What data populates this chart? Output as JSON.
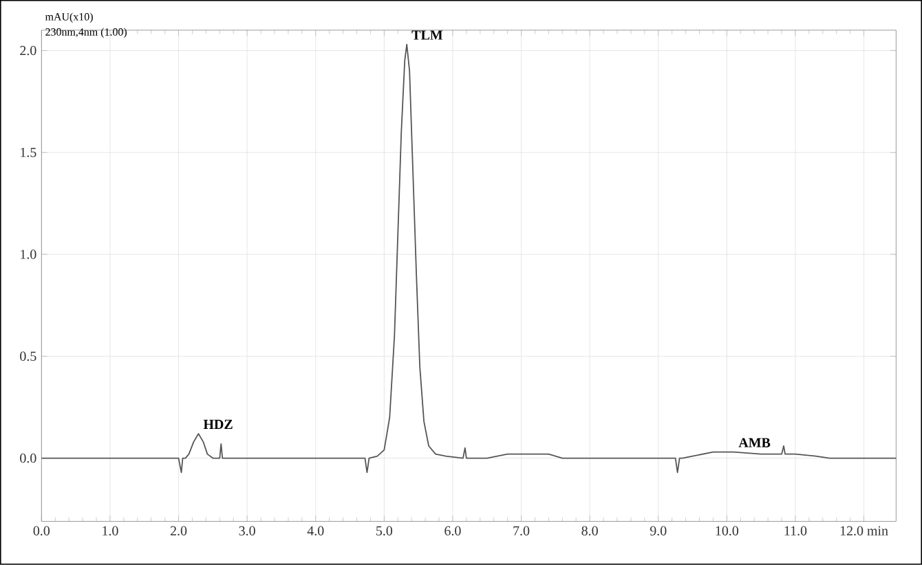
{
  "chart_data": {
    "type": "line",
    "ylabel": "mAU(x10)",
    "annotations": [
      "230nm,4nm (1.00)",
      {
        "text": "HDZ",
        "x": 2.29,
        "y": 0.12
      },
      {
        "text": "TLM",
        "x": 5.33,
        "y": 2.03
      },
      {
        "text": "AMB",
        "x": 10.1,
        "y": 0.03
      }
    ],
    "series": [
      {
        "color": "#555555",
        "x": [
          0.0,
          2.0,
          2.04,
          2.06,
          2.1,
          2.15,
          2.22,
          2.29,
          2.36,
          2.42,
          2.5,
          2.6,
          2.62,
          2.64,
          2.7,
          3.5,
          4.5,
          4.72,
          4.75,
          4.78,
          4.9,
          5.0,
          5.08,
          5.15,
          5.2,
          5.25,
          5.3,
          5.33,
          5.37,
          5.42,
          5.47,
          5.52,
          5.58,
          5.65,
          5.75,
          5.9,
          6.15,
          6.18,
          6.2,
          6.22,
          6.3,
          6.5,
          6.8,
          7.1,
          7.4,
          7.6,
          8.5,
          9.25,
          9.28,
          9.31,
          9.35,
          9.5,
          9.8,
          10.1,
          10.5,
          10.8,
          10.83,
          10.85,
          10.88,
          11.0,
          11.3,
          11.5,
          12.47
        ],
        "values": [
          0.0,
          0.0,
          -0.07,
          0.0,
          0.0,
          0.02,
          0.08,
          0.12,
          0.08,
          0.02,
          0.0,
          0.0,
          0.07,
          0.0,
          0.0,
          0.0,
          0.0,
          0.0,
          -0.07,
          0.0,
          0.01,
          0.04,
          0.2,
          0.6,
          1.1,
          1.6,
          1.95,
          2.03,
          1.9,
          1.4,
          0.9,
          0.45,
          0.18,
          0.06,
          0.02,
          0.01,
          0.0,
          0.05,
          0.0,
          0.0,
          0.0,
          0.0,
          0.02,
          0.02,
          0.02,
          0.0,
          0.0,
          0.0,
          -0.07,
          0.0,
          0.0,
          0.01,
          0.03,
          0.03,
          0.02,
          0.02,
          0.06,
          0.02,
          0.02,
          0.02,
          0.01,
          0.0,
          0.0
        ]
      }
    ],
    "xlim": [
      0.0,
      12.47
    ],
    "ylim": [
      -0.31,
      2.1
    ],
    "xticks": [
      {
        "value": 0,
        "label": "0.0"
      },
      {
        "value": 1,
        "label": "1.0"
      },
      {
        "value": 2,
        "label": "2.0"
      },
      {
        "value": 3,
        "label": "3.0"
      },
      {
        "value": 4,
        "label": "4.0"
      },
      {
        "value": 5,
        "label": "5.0"
      },
      {
        "value": 6,
        "label": "6.0"
      },
      {
        "value": 7,
        "label": "7.0"
      },
      {
        "value": 8,
        "label": "8.0"
      },
      {
        "value": 9,
        "label": "9.0"
      },
      {
        "value": 10,
        "label": "10.0"
      },
      {
        "value": 11,
        "label": "11.0"
      },
      {
        "value": 12,
        "label": "12.0 min"
      }
    ],
    "yticks": [
      {
        "value": 0,
        "label": "0.0"
      },
      {
        "value": 0.5,
        "label": "0.5"
      },
      {
        "value": 1,
        "label": "1.0"
      },
      {
        "value": 1.5,
        "label": "1.5"
      },
      {
        "value": 2,
        "label": "2.0"
      }
    ],
    "grid": true,
    "marker": "none",
    "line_style": "solid"
  }
}
